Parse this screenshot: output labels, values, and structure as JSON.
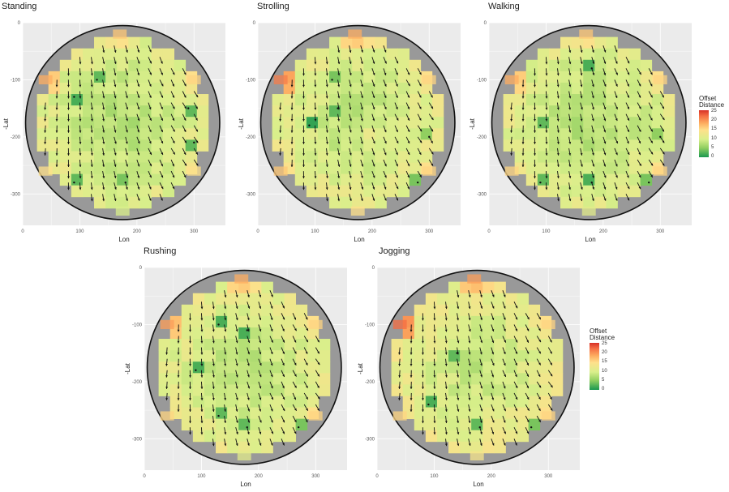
{
  "chart_data": [
    {
      "type": "heatmap",
      "title": "Standing",
      "xlabel": "Lon",
      "ylabel": "-Lat",
      "xlim": [
        0,
        355
      ],
      "ylim": [
        -355,
        0
      ],
      "x_ticks": [
        "0",
        "100",
        "200",
        "300"
      ],
      "y_ticks": [
        "0",
        "-100",
        "-200",
        "-300"
      ],
      "hot_cells": [
        [
          40,
          -100,
          18
        ],
        [
          300,
          -100,
          15
        ],
        [
          40,
          -260,
          14
        ],
        [
          300,
          -260,
          14
        ],
        [
          170,
          -20,
          16
        ],
        [
          175,
          -330,
          10
        ]
      ],
      "cool_cells": [
        [
          90,
          -130,
          2
        ],
        [
          130,
          -100,
          3
        ],
        [
          290,
          -150,
          3
        ],
        [
          300,
          -210,
          3
        ],
        [
          90,
          -280,
          3
        ],
        [
          180,
          -280,
          4
        ]
      ],
      "base_level": 9
    },
    {
      "type": "heatmap",
      "title": "Strolling",
      "xlabel": "Lon",
      "ylabel": "-Lat",
      "xlim": [
        0,
        355
      ],
      "ylim": [
        -355,
        0
      ],
      "x_ticks": [
        "0",
        "100",
        "200",
        "300"
      ],
      "y_ticks": [
        "0",
        "-100",
        "-200",
        "-300"
      ],
      "hot_cells": [
        [
          40,
          -100,
          21
        ],
        [
          300,
          -100,
          15
        ],
        [
          40,
          -260,
          16
        ],
        [
          300,
          -260,
          15
        ],
        [
          170,
          -20,
          18
        ],
        [
          175,
          -330,
          14
        ],
        [
          200,
          -200,
          13
        ]
      ],
      "cool_cells": [
        [
          90,
          -180,
          1
        ],
        [
          140,
          -150,
          3
        ],
        [
          130,
          -100,
          4
        ],
        [
          280,
          -280,
          4
        ],
        [
          300,
          -200,
          5
        ]
      ],
      "base_level": 9.5
    },
    {
      "type": "heatmap",
      "title": "Walking",
      "xlabel": "Lon",
      "ylabel": "-Lat",
      "xlim": [
        0,
        355
      ],
      "ylim": [
        -355,
        0
      ],
      "x_ticks": [
        "0",
        "100",
        "200",
        "300"
      ],
      "y_ticks": [
        "0",
        "-100",
        "-200",
        "-300"
      ],
      "hot_cells": [
        [
          40,
          -100,
          18
        ],
        [
          300,
          -100,
          15
        ],
        [
          40,
          -260,
          15
        ],
        [
          300,
          -260,
          15
        ],
        [
          170,
          -20,
          16
        ],
        [
          175,
          -330,
          11
        ]
      ],
      "cool_cells": [
        [
          180,
          -80,
          2
        ],
        [
          90,
          -180,
          3
        ],
        [
          90,
          -280,
          3
        ],
        [
          180,
          -280,
          2
        ],
        [
          280,
          -280,
          4
        ],
        [
          300,
          -200,
          5
        ]
      ],
      "base_level": 9
    },
    {
      "type": "heatmap",
      "title": "Rushing",
      "xlabel": "Lon",
      "ylabel": "-Lat",
      "xlim": [
        0,
        355
      ],
      "ylim": [
        -355,
        0
      ],
      "x_ticks": [
        "0",
        "100",
        "200",
        "300"
      ],
      "y_ticks": [
        "0",
        "-100",
        "-200",
        "-300"
      ],
      "hot_cells": [
        [
          40,
          -100,
          19
        ],
        [
          300,
          -100,
          15
        ],
        [
          40,
          -260,
          15
        ],
        [
          300,
          -260,
          15
        ],
        [
          170,
          -20,
          18
        ],
        [
          175,
          -330,
          11
        ]
      ],
      "cool_cells": [
        [
          130,
          -100,
          2
        ],
        [
          180,
          -110,
          2
        ],
        [
          90,
          -180,
          2
        ],
        [
          130,
          -260,
          3
        ],
        [
          180,
          -280,
          3
        ],
        [
          270,
          -280,
          4
        ]
      ],
      "base_level": 9.5
    },
    {
      "type": "heatmap",
      "title": "Jogging",
      "xlabel": "Lon",
      "ylabel": "-Lat",
      "xlim": [
        0,
        355
      ],
      "ylim": [
        -355,
        0
      ],
      "x_ticks": [
        "0",
        "100",
        "200",
        "300"
      ],
      "y_ticks": [
        "0",
        "-100",
        "-200",
        "-300"
      ],
      "hot_cells": [
        [
          40,
          -100,
          22
        ],
        [
          300,
          -100,
          15
        ],
        [
          40,
          -260,
          15
        ],
        [
          300,
          -260,
          15
        ],
        [
          170,
          -20,
          19
        ],
        [
          175,
          -330,
          13
        ],
        [
          80,
          -60,
          15
        ]
      ],
      "cool_cells": [
        [
          90,
          -240,
          2
        ],
        [
          140,
          -150,
          3
        ],
        [
          180,
          -280,
          3
        ],
        [
          270,
          -280,
          4
        ]
      ],
      "base_level": 10
    }
  ],
  "legends": [
    {
      "title_line1": "Offset",
      "title_line2": "Distance",
      "ticks": [
        "25",
        "20",
        "15",
        "10",
        "5",
        "0"
      ]
    },
    {
      "title_line1": "Offset",
      "title_line2": "Distance",
      "ticks": [
        "25",
        "20",
        "15",
        "10",
        "5",
        "0"
      ]
    }
  ],
  "colors": {
    "panel_bg": "#ebebeb",
    "grid": "#ffffff",
    "ring": "#999999",
    "ring_stroke": "#111111",
    "arrow": "#111111",
    "low": "#1a9850",
    "mid": "#fee08b",
    "high": "#d73027"
  }
}
